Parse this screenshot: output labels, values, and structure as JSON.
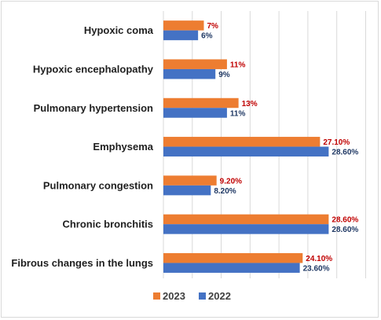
{
  "chart_data": {
    "type": "bar",
    "orientation": "horizontal",
    "categories": [
      "Hypoxic coma",
      "Hypoxic encephalopathy",
      "Pulmonary hypertension",
      "Emphysema",
      "Pulmonary congestion",
      "Chronic bronchitis",
      "Fibrous changes in the lungs"
    ],
    "series": [
      {
        "name": "2023",
        "color": "#ed7d31",
        "values": [
          7,
          11,
          13,
          27.1,
          9.2,
          28.6,
          24.1
        ],
        "labels": [
          "7%",
          "11%",
          "13%",
          "27.10%",
          "9.20%",
          "28.60%",
          "24.10%"
        ]
      },
      {
        "name": "2022",
        "color": "#4472c4",
        "values": [
          6,
          9,
          11,
          28.6,
          8.2,
          28.6,
          23.6
        ],
        "labels": [
          "6%",
          "9%",
          "11%",
          "28.60%",
          "8.20%",
          "28.60%",
          "23.60%"
        ]
      }
    ],
    "xlim": [
      0,
      35
    ],
    "grid": true,
    "legend": "bottom",
    "title": "",
    "xlabel": "",
    "ylabel": ""
  }
}
